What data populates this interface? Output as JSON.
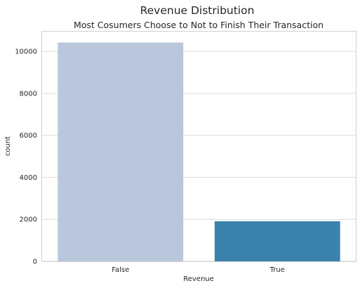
{
  "chart_data": {
    "type": "bar",
    "suptitle": "Revenue Distribution",
    "title": "Most Cosumers Choose to Not to Finish Their Transaction",
    "xlabel": "Revenue",
    "ylabel": "count",
    "categories": [
      "False",
      "True"
    ],
    "values": [
      10422,
      1908
    ],
    "colors": [
      "#b9c6db",
      "#3a82ad"
    ],
    "ylim": [
      0,
      10944
    ],
    "yticks": [
      0,
      2000,
      4000,
      6000,
      8000,
      10000
    ],
    "grid": true,
    "grid_axis": "y",
    "legend": "none"
  }
}
